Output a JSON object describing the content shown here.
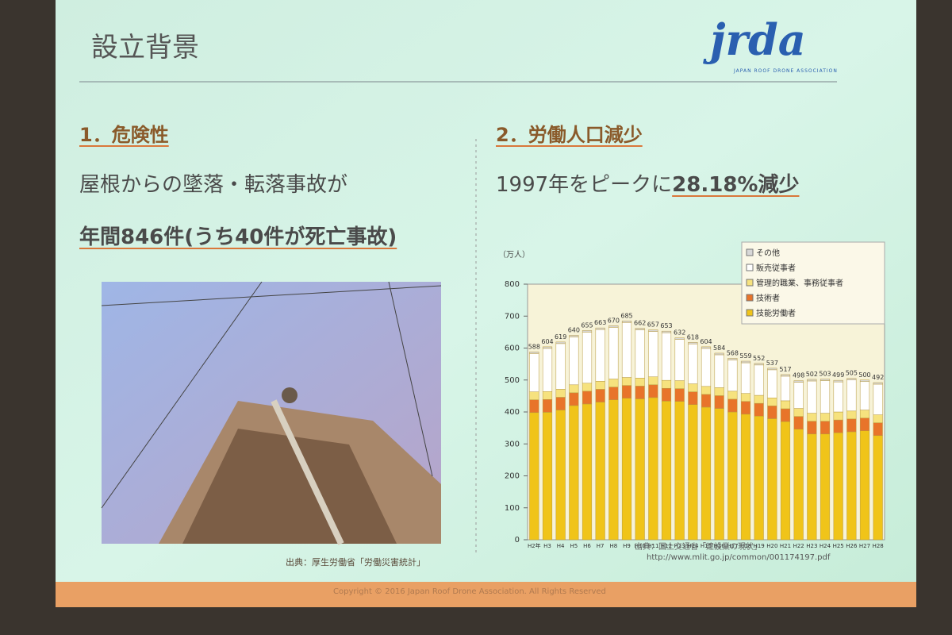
{
  "slide": {
    "title": "設立背景",
    "logo": {
      "mark": "jrda",
      "tagline": "JAPAN ROOF DRONE ASSOCIATION"
    },
    "section1": {
      "heading": "1．危険性",
      "line1": "屋根からの墜落・転落事故が",
      "line2": "年間846件(うち40件が死亡事故)"
    },
    "photo_caption": "出典：厚生労働省「労働災害統計」",
    "section2": {
      "heading": "2．労働人口減少",
      "line_prefix": "1997年をピークに",
      "line_highlight": "28.18%減少"
    },
    "source": "出典：国土交通省「建設業の現状」",
    "url": "http://www.mlit.go.jp/common/001174197.pdf",
    "footer": "Copyright © 2016 Japan Roof Drone Association. All Rights Reserved"
  },
  "chart_data": {
    "type": "bar",
    "stacked": true,
    "unit_label": "（万人）",
    "categories": [
      "H2年",
      "H3",
      "H4",
      "H5",
      "H6",
      "H7",
      "H8",
      "H9",
      "H10",
      "H11",
      "H12",
      "H13",
      "H14",
      "H15",
      "H16",
      "H17",
      "H18",
      "H19",
      "H20",
      "H21",
      "H22",
      "H23",
      "H24",
      "H25",
      "H26",
      "H27",
      "H28"
    ],
    "series": [
      {
        "name": "技能労働者",
        "color": "#f0c419",
        "values": [
          398,
          399,
          406,
          420,
          425,
          431,
          438,
          443,
          441,
          445,
          434,
          433,
          423,
          415,
          411,
          400,
          393,
          387,
          379,
          370,
          346,
          331,
          331,
          335,
          338,
          341,
          326
        ]
      },
      {
        "name": "技術者",
        "color": "#e8742a",
        "values": [
          40,
          40,
          40,
          40,
          40,
          40,
          40,
          40,
          40,
          40,
          40,
          40,
          40,
          40,
          40,
          40,
          40,
          40,
          40,
          40,
          40,
          40,
          40,
          40,
          40,
          40,
          40
        ]
      },
      {
        "name": "管理的職業、事務従事者",
        "color": "#f6e27e",
        "values": [
          25,
          25,
          25,
          25,
          25,
          25,
          25,
          25,
          25,
          25,
          25,
          25,
          25,
          25,
          25,
          25,
          25,
          25,
          25,
          25,
          25,
          25,
          25,
          25,
          25,
          25,
          25
        ]
      },
      {
        "name": "販売従事者",
        "color": "#ffffff",
        "values": [
          120,
          135,
          143,
          150,
          160,
          162,
          162,
          172,
          151,
          142,
          149,
          129,
          125,
          119,
          103,
          98,
          96,
          95,
          88,
          77,
          82,
          101,
          102,
          94,
          97,
          89,
          96
        ]
      },
      {
        "name": "その他",
        "color": "#d8d8d8",
        "values": [
          5,
          5,
          5,
          5,
          5,
          5,
          5,
          5,
          5,
          5,
          5,
          5,
          5,
          5,
          5,
          5,
          5,
          5,
          5,
          5,
          5,
          5,
          5,
          5,
          5,
          5,
          5
        ]
      }
    ],
    "totals": [
      588,
      604,
      619,
      640,
      655,
      663,
      670,
      685,
      662,
      657,
      653,
      632,
      618,
      604,
      584,
      568,
      559,
      552,
      537,
      517,
      498,
      502,
      503,
      499,
      505,
      500,
      492
    ],
    "ylim": [
      0,
      800
    ],
    "yticks": [
      0,
      100,
      200,
      300,
      400,
      500,
      600,
      700,
      800
    ]
  }
}
